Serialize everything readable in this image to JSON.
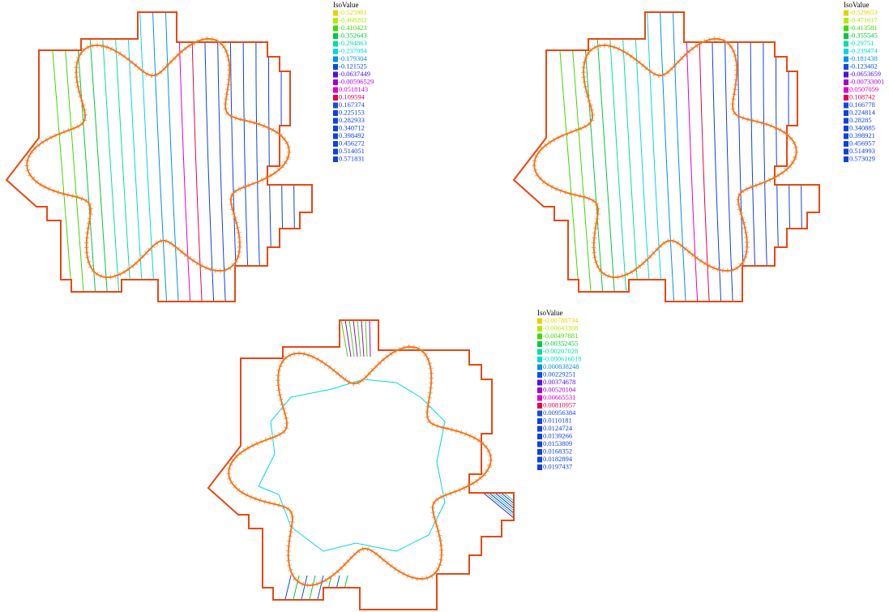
{
  "colors": [
    "#e8d000",
    "#b8e800",
    "#40d800",
    "#00c840",
    "#00e0a0",
    "#00d8e0",
    "#0090e8",
    "#0050e8",
    "#5010e0",
    "#a000e0",
    "#e000c8",
    "#e80050",
    "#1848e0",
    "#1040e0",
    "#1040e0",
    "#1040e0",
    "#1040e0",
    "#1040e0",
    "#1040e0",
    "#1040e0"
  ],
  "legends": [
    {
      "title": "IsoValue",
      "values": [
        "-0.525981",
        "-0.468202",
        "-0.410423",
        "-0.352643",
        "-0.294863",
        "-0.237084",
        "-0.179304",
        "-0.121525",
        "-0.0637449",
        "-0.00596529",
        "0.0518143",
        "0.109594",
        "0.167374",
        "0.225153",
        "0.282933",
        "0.340712",
        "0.398492",
        "0.456272",
        "0.514051",
        "0.571831"
      ]
    },
    {
      "title": "IsoValue",
      "values": [
        "-0.529653",
        "-0.471617",
        "-0.413581",
        "-0.355545",
        "-0.29751",
        "-0.239474",
        "-0.181438",
        "-0.123402",
        "-0.0653659",
        "-0.00733001",
        "0.0507059",
        "0.108742",
        "0.166778",
        "0.224814",
        "0.28285",
        "0.340885",
        "0.398921",
        "0.456957",
        "0.514993",
        "0.573029"
      ]
    },
    {
      "title": "IsoValue",
      "values": [
        "-0.00788734",
        "-0.00643308",
        "-0.00497881",
        "-0.00352455",
        "-0.00207028",
        "-0.000616018",
        "0.000838248",
        "0.00229251",
        "0.00374678",
        "0.00520104",
        "0.00665531",
        "0.00810957",
        "0.00956384",
        "0.0110181",
        "0.0124724",
        "0.0139266",
        "0.0153809",
        "0.0168352",
        "0.0182894",
        "0.0197437"
      ]
    }
  ]
}
